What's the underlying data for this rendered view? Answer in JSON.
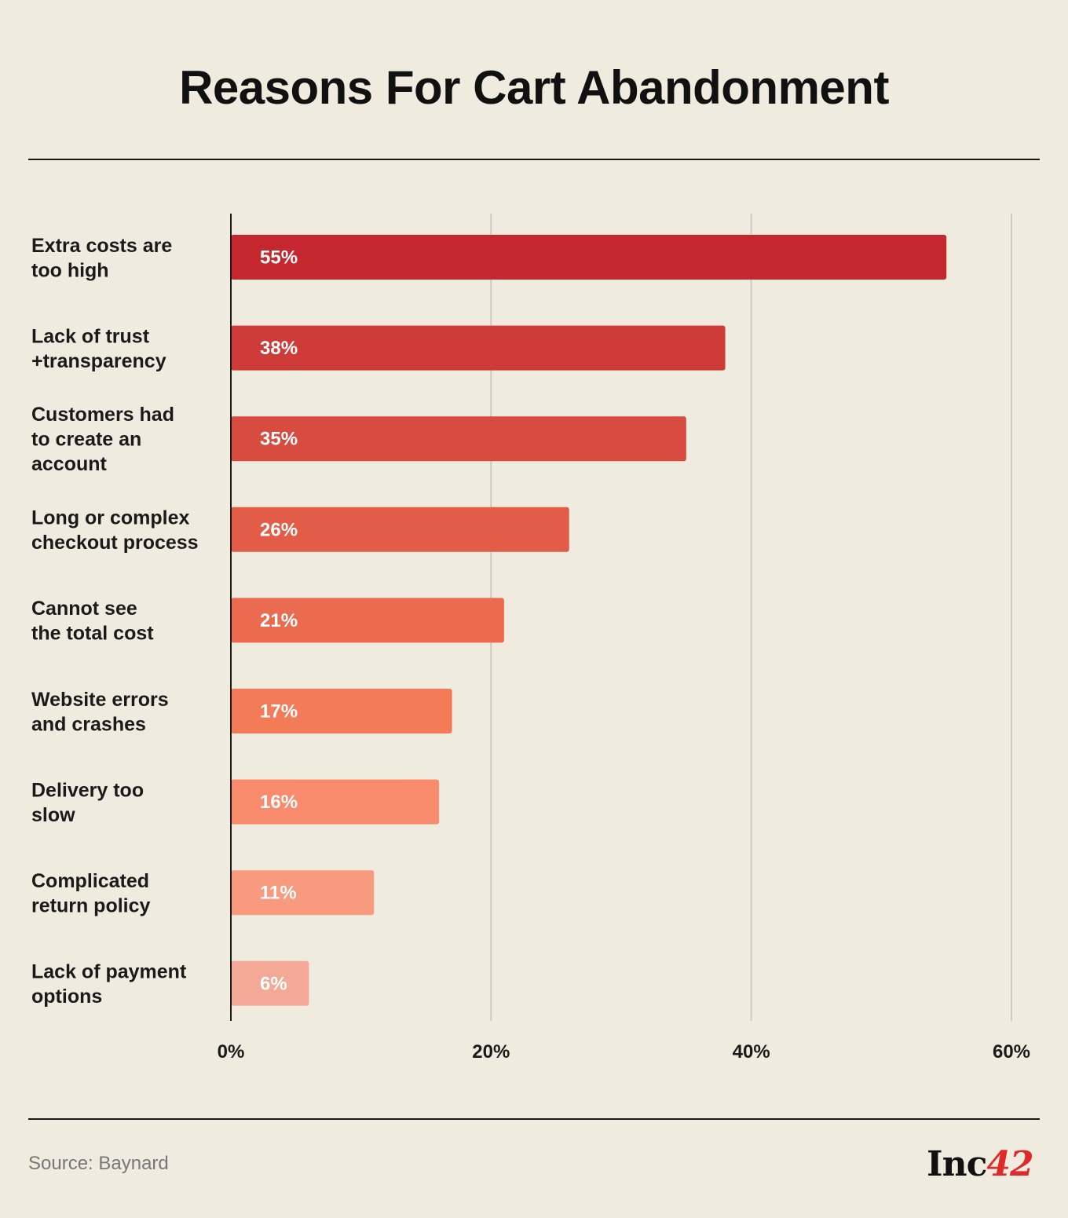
{
  "title": "Reasons For Cart Abandonment",
  "source": "Source: Baynard",
  "logo": {
    "text": "Inc",
    "number": "42"
  },
  "colors": {
    "background": "#f0ebdf",
    "bars": [
      "#c4272e",
      "#cf3b38",
      "#d84b41",
      "#e25c48",
      "#eb6b50",
      "#f47b58",
      "#f78b6c",
      "#f79a7e",
      "#f3a996"
    ],
    "logo_accent": "#e02a2a"
  },
  "chart_data": {
    "type": "bar",
    "orientation": "horizontal",
    "categories": [
      [
        "Extra costs are",
        "too high"
      ],
      [
        "Lack of trust",
        "+transparency"
      ],
      [
        "Customers had",
        "to create an",
        "account"
      ],
      [
        "Long or complex",
        "checkout process"
      ],
      [
        "Cannot see",
        "the total cost"
      ],
      [
        "Website errors",
        "and crashes"
      ],
      [
        "Delivery too",
        "slow"
      ],
      [
        "Complicated",
        "return policy"
      ],
      [
        "Lack of payment",
        "options"
      ]
    ],
    "values": [
      55,
      38,
      35,
      26,
      21,
      17,
      16,
      11,
      6
    ],
    "value_labels": [
      "55%",
      "38%",
      "35%",
      "26%",
      "21%",
      "17%",
      "16%",
      "11%",
      "6%"
    ],
    "x_ticks": [
      "0%",
      "20%",
      "40%",
      "60%"
    ],
    "x_tick_values": [
      0,
      20,
      40,
      60
    ],
    "xlim": [
      0,
      60
    ],
    "grid": true,
    "title": "Reasons For Cart Abandonment",
    "xlabel": "",
    "ylabel": ""
  }
}
